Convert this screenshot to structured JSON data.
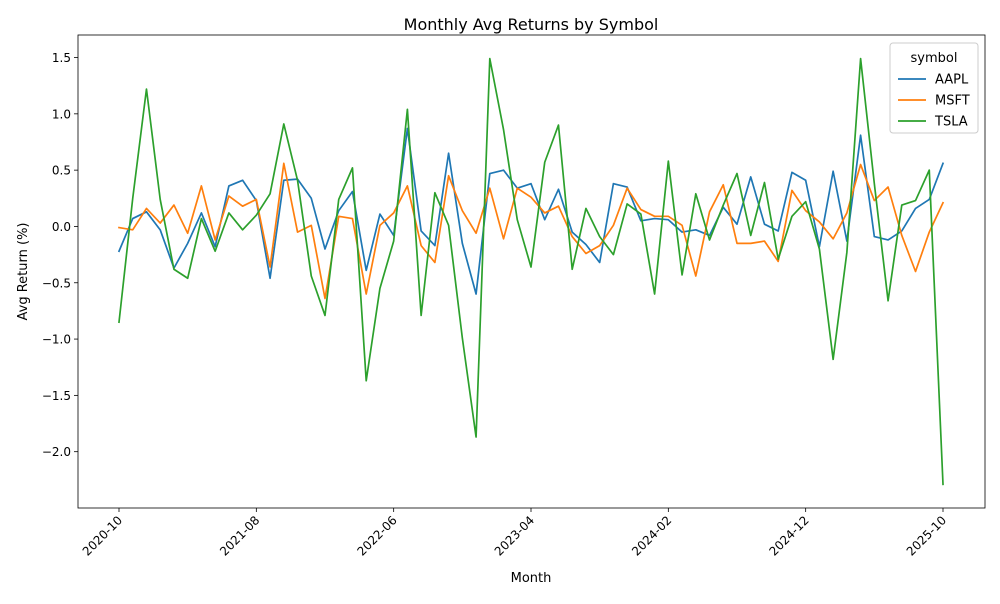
{
  "chart_data": {
    "type": "line",
    "title": "Monthly Avg Returns by Symbol",
    "xlabel": "Month",
    "ylabel": "Avg Return (%)",
    "ylim": [
      -2.5,
      1.7
    ],
    "yticks": [
      -2.0,
      -1.5,
      -1.0,
      -0.5,
      0.0,
      0.5,
      1.0,
      1.5
    ],
    "ytick_labels": [
      "−2.0",
      "−1.5",
      "−1.0",
      "−0.5",
      "0.0",
      "0.5",
      "1.0",
      "1.5"
    ],
    "xtick_labels": [
      "2020-10",
      "2021-08",
      "2022-06",
      "2023-04",
      "2024-02",
      "2024-12",
      "2025-10"
    ],
    "xtick_index": [
      0,
      10,
      20,
      30,
      40,
      50,
      60
    ],
    "x": [
      "2020-10",
      "2020-11",
      "2020-12",
      "2021-01",
      "2021-02",
      "2021-03",
      "2021-04",
      "2021-05",
      "2021-06",
      "2021-07",
      "2021-08",
      "2021-09",
      "2021-10",
      "2021-11",
      "2021-12",
      "2022-01",
      "2022-02",
      "2022-03",
      "2022-04",
      "2022-05",
      "2022-06",
      "2022-07",
      "2022-08",
      "2022-09",
      "2022-10",
      "2022-11",
      "2022-12",
      "2023-01",
      "2023-02",
      "2023-03",
      "2023-04",
      "2023-05",
      "2023-06",
      "2023-07",
      "2023-08",
      "2023-09",
      "2023-10",
      "2023-11",
      "2023-12",
      "2024-01",
      "2024-02",
      "2024-03",
      "2024-04",
      "2024-05",
      "2024-06",
      "2024-07",
      "2024-08",
      "2024-09",
      "2024-10",
      "2024-11",
      "2024-12",
      "2025-01",
      "2025-02",
      "2025-03",
      "2025-04",
      "2025-05",
      "2025-06",
      "2025-07",
      "2025-08",
      "2025-09",
      "2025-10"
    ],
    "legend": {
      "title": "symbol",
      "position": "upper-right"
    },
    "grid": false,
    "series": [
      {
        "name": "AAPL",
        "color": "#1f77b4",
        "values": [
          -0.22,
          0.07,
          0.13,
          -0.03,
          -0.37,
          -0.15,
          0.12,
          -0.18,
          0.36,
          0.41,
          0.23,
          -0.46,
          0.41,
          0.42,
          0.25,
          -0.2,
          0.14,
          0.31,
          -0.39,
          0.11,
          -0.08,
          0.87,
          -0.04,
          -0.17,
          0.65,
          -0.15,
          -0.6,
          0.47,
          0.5,
          0.34,
          0.38,
          0.06,
          0.33,
          -0.05,
          -0.16,
          -0.32,
          0.38,
          0.35,
          0.05,
          0.07,
          0.06,
          -0.05,
          -0.03,
          -0.08,
          0.17,
          0.02,
          0.44,
          0.02,
          -0.04,
          0.48,
          0.41,
          -0.18,
          0.49,
          -0.13,
          0.81,
          -0.09,
          -0.12,
          -0.04,
          0.16,
          0.24,
          0.56
        ]
      },
      {
        "name": "MSFT",
        "color": "#ff7f0e",
        "values": [
          -0.01,
          -0.03,
          0.16,
          0.03,
          0.19,
          -0.06,
          0.36,
          -0.12,
          0.27,
          0.18,
          0.24,
          -0.36,
          0.56,
          -0.05,
          0.01,
          -0.64,
          0.09,
          0.07,
          -0.6,
          0.01,
          0.12,
          0.36,
          -0.17,
          -0.32,
          0.45,
          0.14,
          -0.06,
          0.34,
          -0.11,
          0.34,
          0.26,
          0.12,
          0.18,
          -0.09,
          -0.24,
          -0.17,
          0.01,
          0.34,
          0.15,
          0.09,
          0.09,
          0.01,
          -0.44,
          0.13,
          0.37,
          -0.15,
          -0.15,
          -0.13,
          -0.31,
          0.32,
          0.14,
          0.04,
          -0.11,
          0.12,
          0.55,
          0.23,
          0.35,
          -0.08,
          -0.4,
          -0.05,
          0.21
        ]
      },
      {
        "name": "TSLA",
        "color": "#2ca02c",
        "values": [
          -0.85,
          0.25,
          1.22,
          0.24,
          -0.38,
          -0.46,
          0.07,
          -0.22,
          0.12,
          -0.03,
          0.1,
          0.29,
          0.91,
          0.41,
          -0.44,
          -0.79,
          0.24,
          0.52,
          -1.37,
          -0.55,
          -0.13,
          1.04,
          -0.79,
          0.3,
          0.01,
          -0.99,
          -1.87,
          1.49,
          0.86,
          0.06,
          -0.36,
          0.57,
          0.9,
          -0.38,
          0.16,
          -0.09,
          -0.25,
          0.2,
          0.11,
          -0.6,
          0.58,
          -0.43,
          0.29,
          -0.12,
          0.19,
          0.47,
          -0.08,
          0.39,
          -0.29,
          0.09,
          0.22,
          -0.2,
          -1.18,
          -0.23,
          1.49,
          0.38,
          -0.66,
          0.19,
          0.23,
          0.5,
          -2.29
        ]
      }
    ]
  }
}
